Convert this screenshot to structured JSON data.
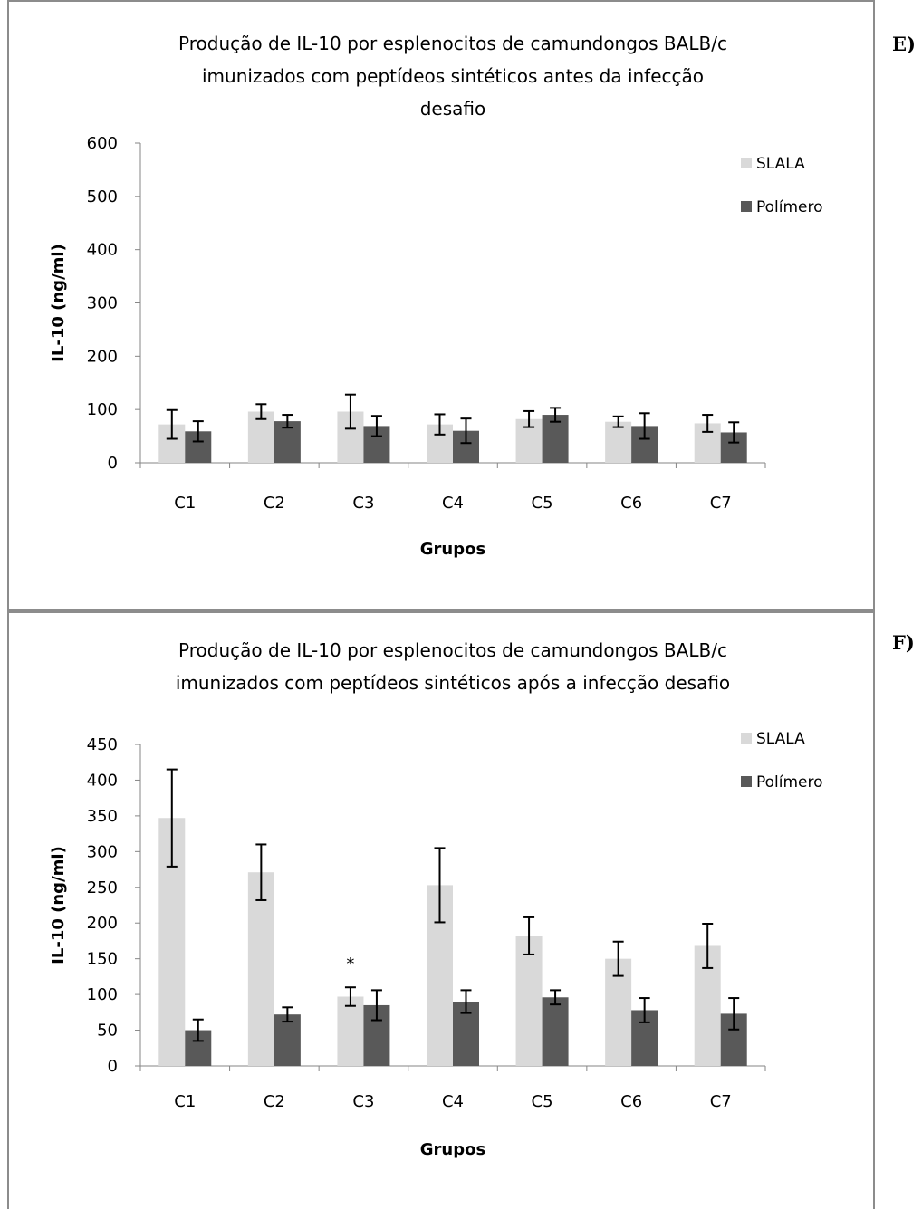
{
  "panels": [
    {
      "label": "E)",
      "chart_data": {
        "type": "bar",
        "title": [
          "Produção de IL-10 por esplenocitos de camundongos BALB/c",
          "imunizados com peptídeos sintéticos antes da infecção",
          "desafio"
        ],
        "xlabel": "Grupos",
        "ylabel": "IL-10 (ng/ml)",
        "ylim": [
          0,
          600
        ],
        "yticks": [
          0,
          100,
          200,
          300,
          400,
          500,
          600
        ],
        "categories": [
          "C1",
          "C2",
          "C3",
          "C4",
          "C5",
          "C6",
          "C7"
        ],
        "legend_position": "top-right",
        "grid": false,
        "series": [
          {
            "name": "SLALA",
            "color": "#d9d9d9",
            "values": [
              72,
              96,
              96,
              72,
              82,
              77,
              74
            ],
            "errors": [
              27,
              14,
              32,
              19,
              15,
              10,
              16
            ]
          },
          {
            "name": "Polímero",
            "color": "#595959",
            "values": [
              59,
              78,
              69,
              60,
              90,
              69,
              57
            ],
            "errors": [
              19,
              12,
              19,
              23,
              13,
              24,
              19
            ]
          }
        ],
        "annotations": []
      }
    },
    {
      "label": "F)",
      "chart_data": {
        "type": "bar",
        "title": [
          "Produção de IL-10 por esplenocitos de camundongos BALB/c",
          "imunizados com peptídeos sintéticos após a infecção desafio"
        ],
        "xlabel": "Grupos",
        "ylabel": "IL-10 (ng/ml)",
        "ylim": [
          0,
          450
        ],
        "yticks": [
          0,
          50,
          100,
          150,
          200,
          250,
          300,
          350,
          400,
          450
        ],
        "categories": [
          "C1",
          "C2",
          "C3",
          "C4",
          "C5",
          "C6",
          "C7"
        ],
        "legend_position": "top-right",
        "grid": false,
        "series": [
          {
            "name": "SLALA",
            "color": "#d9d9d9",
            "values": [
              347,
              271,
              97,
              253,
              182,
              150,
              168
            ],
            "errors": [
              68,
              39,
              13,
              52,
              26,
              24,
              31
            ]
          },
          {
            "name": "Polímero",
            "color": "#595959",
            "values": [
              50,
              72,
              85,
              90,
              96,
              78,
              73
            ],
            "errors": [
              15,
              10,
              21,
              16,
              10,
              17,
              22
            ]
          }
        ],
        "annotations": [
          {
            "text": "*",
            "category": "C3",
            "value": 148
          }
        ]
      }
    }
  ]
}
